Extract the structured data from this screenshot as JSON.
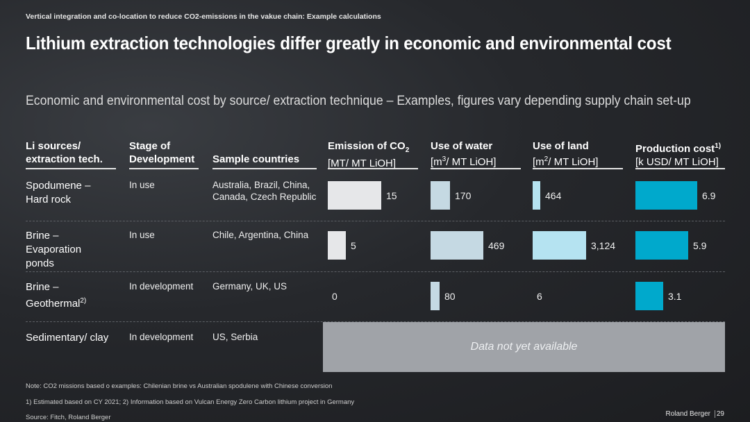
{
  "header": {
    "kicker": "Vertical integration and co-location to reduce CO2-emissions in the vakue chain: Example calculations",
    "title": "Lithium extraction technologies differ greatly in economic and environmental cost",
    "subtitle": "Economic and environmental cost by source/ extraction technique – Examples, figures vary depending supply chain set-up"
  },
  "table": {
    "col_source": [
      "Li sources/",
      "extraction tech."
    ],
    "col_stage": [
      "Stage of",
      "Development"
    ],
    "col_countries": "Sample countries",
    "col_co2": {
      "title_main": "Emission of CO",
      "title_sub": "2",
      "unit": "[MT/ MT LiOH]"
    },
    "col_water": {
      "title": "Use of water",
      "unit_pre": "[m",
      "unit_sup": "3",
      "unit_post": "/ MT LiOH]"
    },
    "col_land": {
      "title": "Use of land",
      "unit_pre": "[m",
      "unit_sup": "2",
      "unit_post": "/ MT LiOH]"
    },
    "col_cost": {
      "title": "Production cost",
      "title_sup": "1)",
      "unit": "[k USD/ MT LiOH]"
    },
    "rows": [
      {
        "source": "Spodumene – Hard rock",
        "stage": "In use",
        "countries": "Australia, Brazil, China, Canada, Czech Republic",
        "co2_label": "15",
        "water_label": "170",
        "land_label": "464",
        "cost_label": "6.9"
      },
      {
        "source": "Brine – Evaporation ponds",
        "stage": "In use",
        "countries": "Chile, Argentina, China",
        "co2_label": "5",
        "water_label": "469",
        "land_label": "3,124",
        "cost_label": "5.9"
      },
      {
        "source": "Brine – Geothermal",
        "source_sup": "2)",
        "stage": "In development",
        "countries": "Germany, UK, US",
        "co2_label": "0",
        "water_label": "80",
        "land_label": "6",
        "cost_label": "3.1"
      },
      {
        "source": "Sedimentary/ clay",
        "stage": "In development",
        "countries": "US, Serbia"
      }
    ],
    "not_available": "Data not yet available"
  },
  "chart_data": {
    "type": "bar",
    "categories": [
      "Spodumene – Hard rock",
      "Brine – Evaporation ponds",
      "Brine – Geothermal"
    ],
    "series": [
      {
        "name": "Emission of CO2 [MT/ MT LiOH]",
        "values": [
          15,
          5,
          0
        ],
        "color": "#e6e7e9"
      },
      {
        "name": "Use of water [m3/ MT LiOH]",
        "values": [
          170,
          469,
          80
        ],
        "color": "#c5d9e3"
      },
      {
        "name": "Use of land [m2/ MT LiOH]",
        "values": [
          464,
          3124,
          6
        ],
        "color": "#b5e3f1"
      },
      {
        "name": "Production cost [k USD/ MT LiOH]",
        "values": [
          6.9,
          5.9,
          3.1
        ],
        "color": "#00a9cc"
      }
    ],
    "orientation": "horizontal"
  },
  "footer": {
    "note": "Note: CO2 missions based o examples: Chilenian brine vs Australian spodulene with Chinese conversion",
    "footnote": "1) Estimated based on CY 2021; 2) Information based on Vulcan Energy Zero Carbon lithium project in Germany",
    "source": "Source: Fitch, Roland Berger",
    "brand": "Roland Berger",
    "page": "29"
  }
}
